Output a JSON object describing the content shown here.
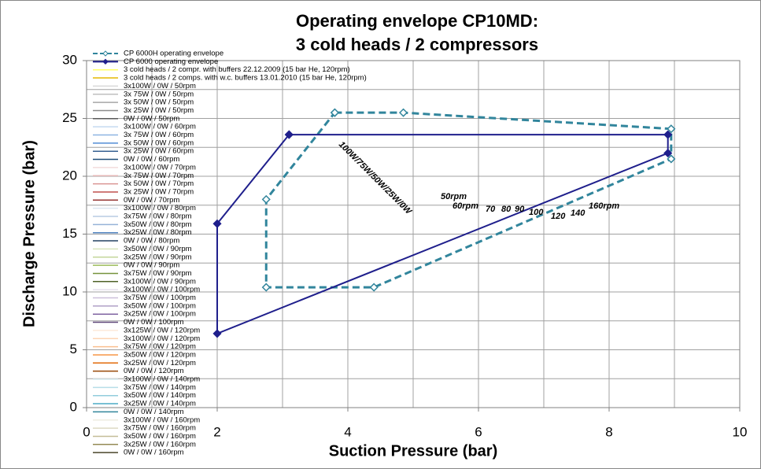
{
  "chart_data": {
    "type": "line",
    "title": [
      "Operating envelope CP10MD:",
      "3 cold heads / 2 compressors"
    ],
    "xlabel": "Suction Pressure (bar)",
    "ylabel": "Discharge Pressure (bar)",
    "xlim": [
      0,
      10
    ],
    "xticks": [
      0,
      2,
      4,
      6,
      8,
      10
    ],
    "xgrid": [
      0,
      1,
      2,
      3,
      4,
      5,
      6,
      7,
      8,
      9,
      10
    ],
    "ylim": [
      0,
      30
    ],
    "yticks": [
      0,
      5,
      10,
      15,
      20,
      25,
      30
    ],
    "ygrid": [
      0,
      2.5,
      5,
      7.5,
      10,
      12.5,
      15,
      17.5,
      20,
      22.5,
      25,
      27.5,
      30
    ],
    "annotations": [
      "100W/75W/50W/25W/0W",
      "50rpm",
      "60rpm",
      "70",
      "80",
      "90",
      "100",
      "120",
      "140",
      "160rpm"
    ],
    "annotation_colors": [
      "#000000",
      "#8c8c8c",
      "#1f4e79",
      "#c0504d",
      "#4f81bd",
      "#9bbb59",
      "#8064a2",
      "#f79646",
      "#4bacc6",
      "#948a54"
    ],
    "series": [
      {
        "name": "CP 6000H operating envelope",
        "color": "#31859c",
        "dash": true,
        "marker": "open",
        "x": [
          3.8,
          4.85,
          8.95,
          8.95,
          4.4,
          2.75,
          2.75,
          3.8
        ],
        "y": [
          25.5,
          25.5,
          24.1,
          21.5,
          10.4,
          10.4,
          18,
          25.5
        ]
      },
      {
        "name": "CP 6000 operating envelope",
        "color": "#1f1f8c",
        "dash": false,
        "marker": "filled",
        "x": [
          3.1,
          8.9,
          8.9,
          2,
          2,
          3.1
        ],
        "y": [
          23.6,
          23.6,
          22,
          6.4,
          15.9,
          23.6
        ]
      },
      {
        "name": "3 cold heads / 2 compr. with buffers 22.12.2009 (15 bar He, 120rpm)",
        "color": "#ffff66",
        "x": [],
        "y": []
      },
      {
        "name": "3 cold heads / 2 comps. with w.c. buffers 13.01.2010 (15 bar He, 120rpm)",
        "color": "#e6b800",
        "x": [],
        "y": []
      },
      {
        "name": "3x100W / 0W / 50rpm",
        "color": "#d9d9d9",
        "x": [],
        "y": []
      },
      {
        "name": "3x 75W / 0W / 50rpm",
        "color": "#bfbfbf",
        "x": [],
        "y": []
      },
      {
        "name": "3x 50W / 0W / 50rpm",
        "color": "#a6a6a6",
        "x": [],
        "y": []
      },
      {
        "name": "3x 25W / 0W / 50rpm",
        "color": "#8c8c8c",
        "x": [],
        "y": []
      },
      {
        "name": "0W / 0W / 50rpm",
        "color": "#595959",
        "x": [],
        "y": []
      },
      {
        "name": "3x100W / 0W / 60rpm",
        "color": "#c5d9f1",
        "x": [],
        "y": []
      },
      {
        "name": "3x 75W / 0W / 60rpm",
        "color": "#8db4e2",
        "x": [],
        "y": []
      },
      {
        "name": "3x 50W / 0W / 60rpm",
        "color": "#538dd5",
        "x": [],
        "y": []
      },
      {
        "name": "3x 25W / 0W / 60rpm",
        "color": "#366092",
        "x": [],
        "y": []
      },
      {
        "name": "0W / 0W / 60rpm",
        "color": "#1f4e79",
        "x": [],
        "y": []
      },
      {
        "name": "3x100W / 0W / 70rpm",
        "color": "#f2dcdb",
        "x": [],
        "y": []
      },
      {
        "name": "3x 75W / 0W / 70rpm",
        "color": "#e6b8b7",
        "x": [],
        "y": []
      },
      {
        "name": "3x 50W / 0W / 70rpm",
        "color": "#da9694",
        "x": [],
        "y": []
      },
      {
        "name": "3x 25W / 0W / 70rpm",
        "color": "#c0504d",
        "x": [],
        "y": []
      },
      {
        "name": "0W / 0W / 70rpm",
        "color": "#963634",
        "x": [],
        "y": []
      },
      {
        "name": "3x100W / 0W / 80rpm",
        "color": "#dce6f1",
        "x": [],
        "y": []
      },
      {
        "name": "3x75W / 0W / 80rpm",
        "color": "#b8cce4",
        "x": [],
        "y": []
      },
      {
        "name": "3x50W / 0W / 80rpm",
        "color": "#95b3d7",
        "x": [],
        "y": []
      },
      {
        "name": "3x25W / 0W / 80rpm",
        "color": "#4f81bd",
        "x": [],
        "y": []
      },
      {
        "name": "0W / 0W / 80rpm",
        "color": "#244062",
        "x": [],
        "y": []
      },
      {
        "name": "3x50W / 0W / 90rpm",
        "color": "#d8e4bc",
        "x": [],
        "y": []
      },
      {
        "name": "3x25W / 0W / 90rpm",
        "color": "#c4d79b",
        "x": [],
        "y": []
      },
      {
        "name": "0W / 0W / 90rpm",
        "color": "#9bbb59",
        "x": [],
        "y": []
      },
      {
        "name": "3x75W / 0W / 90rpm",
        "color": "#76933c",
        "x": [],
        "y": []
      },
      {
        "name": "3x100W / 0W / 90rpm",
        "color": "#4f6228",
        "x": [],
        "y": []
      },
      {
        "name": "3x100W / 0W / 100rpm",
        "color": "#e4dfec",
        "x": [],
        "y": []
      },
      {
        "name": "3x75W / 0W / 100rpm",
        "color": "#ccc0da",
        "x": [],
        "y": []
      },
      {
        "name": "3x50W / 0W / 100rpm",
        "color": "#b1a0c7",
        "x": [],
        "y": []
      },
      {
        "name": "3x25W / 0W / 100rpm",
        "color": "#8064a2",
        "x": [],
        "y": []
      },
      {
        "name": "0W / 0W / 100rpm",
        "color": "#60497a",
        "x": [],
        "y": []
      },
      {
        "name": "3x125W / 0W / 120rpm",
        "color": "#fde9d9",
        "x": [],
        "y": []
      },
      {
        "name": "3x100W / 0W / 120rpm",
        "color": "#fcd5b4",
        "x": [],
        "y": []
      },
      {
        "name": "3x75W / 0W / 120rpm",
        "color": "#fabf8f",
        "x": [],
        "y": []
      },
      {
        "name": "3x50W / 0W / 120rpm",
        "color": "#f79646",
        "x": [],
        "y": []
      },
      {
        "name": "3x25W / 0W / 120rpm",
        "color": "#e26b0a",
        "x": [],
        "y": []
      },
      {
        "name": "0W / 0W / 120rpm",
        "color": "#974706",
        "x": [],
        "y": []
      },
      {
        "name": "3x100W / 0W / 140rpm",
        "color": "#daeef3",
        "x": [],
        "y": []
      },
      {
        "name": "3x75W / 0W / 140rpm",
        "color": "#b7dee8",
        "x": [],
        "y": []
      },
      {
        "name": "3x50W / 0W / 140rpm",
        "color": "#92cddc",
        "x": [],
        "y": []
      },
      {
        "name": "3x25W / 0W / 140rpm",
        "color": "#4bacc6",
        "x": [],
        "y": []
      },
      {
        "name": "0W / 0W / 140rpm",
        "color": "#31869b",
        "x": [],
        "y": []
      },
      {
        "name": "3x100W / 0W / 160rpm",
        "color": "#eeece1",
        "x": [],
        "y": []
      },
      {
        "name": "3x75W / 0W / 160rpm",
        "color": "#ddd9c4",
        "x": [],
        "y": []
      },
      {
        "name": "3x50W / 0W / 160rpm",
        "color": "#c4bd97",
        "x": [],
        "y": []
      },
      {
        "name": "3x25W / 0W / 160rpm",
        "color": "#948a54",
        "x": [],
        "y": []
      },
      {
        "name": "0W / 0W / 160rpm",
        "color": "#494529",
        "x": [],
        "y": []
      }
    ]
  }
}
